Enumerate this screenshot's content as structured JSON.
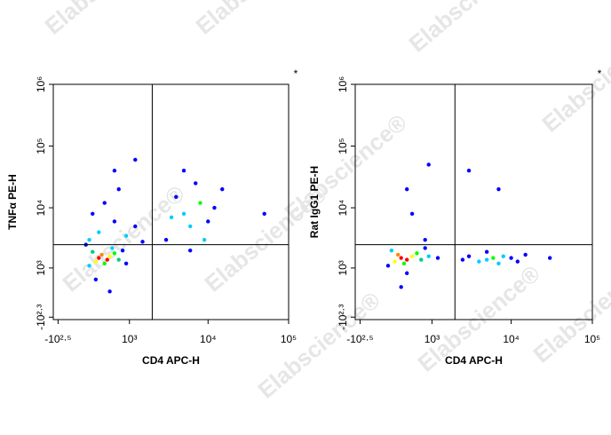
{
  "watermark": "Elabscience®",
  "chart_data": [
    {
      "type": "scatter",
      "xlabel": "CD4 APC-H",
      "ylabel": "TNFα PE-H",
      "annotation": "*",
      "xlim": [
        -400,
        100000
      ],
      "ylim": [
        -250,
        1000000
      ],
      "xticks": [
        {
          "value": -316,
          "label": "-10²·⁵"
        },
        {
          "value": 1000,
          "label": "10³"
        },
        {
          "value": 10000,
          "label": "10⁴"
        },
        {
          "value": 100000,
          "label": "10⁵"
        }
      ],
      "yticks": [
        {
          "value": -200,
          "label": "-10²·³"
        },
        {
          "value": 1000,
          "label": "10³"
        },
        {
          "value": 10000,
          "label": "10⁴"
        },
        {
          "value": 100000,
          "label": "10⁵"
        },
        {
          "value": 1000000,
          "label": "10⁶"
        }
      ],
      "gates": {
        "x": 2000,
        "y": 2500
      },
      "x": [
        300,
        450,
        350,
        500,
        250,
        600,
        400,
        200,
        700,
        550,
        150,
        800,
        100,
        900,
        300,
        600,
        200,
        900,
        400,
        1200,
        150,
        700,
        1500,
        250,
        500,
        5000,
        8000,
        6000,
        4000,
        10000,
        3000,
        7000,
        12000,
        5000,
        9000,
        3500,
        15000,
        6000,
        50000,
        600,
        1200
      ],
      "y": [
        1500,
        1400,
        1700,
        1600,
        1300,
        1800,
        1200,
        1900,
        1400,
        2200,
        1100,
        2000,
        2500,
        1200,
        4000,
        6000,
        8000,
        3500,
        12000,
        5000,
        3000,
        20000,
        2800,
        600,
        300,
        8000,
        12000,
        5000,
        15000,
        6000,
        3000,
        25000,
        10000,
        40000,
        3000,
        7000,
        20000,
        2000,
        8000,
        40000,
        60000
      ],
      "colors": [
        "#ff0000",
        "#ff0000",
        "#ff8800",
        "#ffff00",
        "#ffff00",
        "#00ff00",
        "#00ff00",
        "#00cc88",
        "#00cc88",
        "#00ccff",
        "#00ccff",
        "#0000ff",
        "#0000ff",
        "#0000ff",
        "#00ccff",
        "#0000ff",
        "#0000ff",
        "#00ccff",
        "#0000ff",
        "#0000ff",
        "#00ccff",
        "#0000ff",
        "#0000ff",
        "#0000ff",
        "#0000ff",
        "#00ccff",
        "#00ff00",
        "#00ccff",
        "#0000ff",
        "#0000ff",
        "#0000ff",
        "#0000ff",
        "#0000ff",
        "#0000ff",
        "#00ccff",
        "#00ccff",
        "#0000ff",
        "#0000ff",
        "#0000ff",
        "#0000ff",
        "#0000ff"
      ]
    },
    {
      "type": "scatter",
      "xlabel": "CD4 APC-H",
      "ylabel": "Rat IgG1 PE-H",
      "annotation": "*",
      "xlim": [
        -400,
        100000
      ],
      "ylim": [
        -250,
        1000000
      ],
      "xticks": [
        {
          "value": -316,
          "label": "-10²·⁵"
        },
        {
          "value": 1000,
          "label": "10³"
        },
        {
          "value": 10000,
          "label": "10⁴"
        },
        {
          "value": 100000,
          "label": "10⁵"
        }
      ],
      "yticks": [
        {
          "value": -200,
          "label": "-10²·³"
        },
        {
          "value": 1000,
          "label": "10³"
        },
        {
          "value": 10000,
          "label": "10⁴"
        },
        {
          "value": 100000,
          "label": "10⁵"
        },
        {
          "value": 1000000,
          "label": "10⁶"
        }
      ],
      "gates": {
        "x": 2000,
        "y": 2500
      },
      "x": [
        300,
        400,
        250,
        500,
        200,
        600,
        350,
        700,
        150,
        900,
        1200,
        100,
        800,
        400,
        300,
        6000,
        5000,
        8000,
        4000,
        3000,
        10000,
        7000,
        2500,
        15000,
        5000,
        12000,
        30000,
        500,
        800,
        400,
        3000,
        7000,
        900
      ],
      "y": [
        1500,
        1400,
        1700,
        1600,
        1300,
        1800,
        1200,
        1400,
        2000,
        1600,
        1500,
        1100,
        2200,
        800,
        400,
        1500,
        1400,
        1600,
        1300,
        1600,
        1500,
        1200,
        1400,
        1700,
        1900,
        1300,
        1500,
        8000,
        3000,
        20000,
        40000,
        20000,
        50000
      ],
      "colors": [
        "#ff0000",
        "#ff0000",
        "#ff8800",
        "#ffff00",
        "#ffff00",
        "#00ff00",
        "#00ff00",
        "#00cc88",
        "#00ccff",
        "#00ccff",
        "#0000ff",
        "#0000ff",
        "#0000ff",
        "#0000ff",
        "#0000ff",
        "#00ff00",
        "#00ccff",
        "#00ccff",
        "#00ccff",
        "#0000ff",
        "#0000ff",
        "#00ccff",
        "#0000ff",
        "#0000ff",
        "#0000ff",
        "#0000ff",
        "#0000ff",
        "#0000ff",
        "#0000ff",
        "#0000ff",
        "#0000ff",
        "#0000ff",
        "#0000ff"
      ]
    }
  ]
}
